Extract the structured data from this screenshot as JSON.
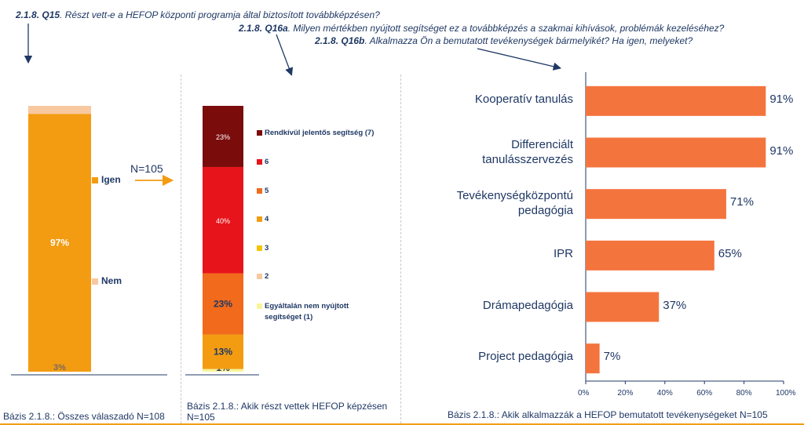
{
  "questions": {
    "q15": {
      "code": "2.1.8. Q15",
      "text": ". Részt vett-e a HEFOP központi programja által biztosított továbbképzésen?"
    },
    "q16a": {
      "code": "2.1.8. Q16a",
      "text": ". Milyen mértékben nyújtott segítséget ez a továbbképzés a szakmai kihívások, problémák kezeléséhez?"
    },
    "q16b": {
      "code": "2.1.8. Q16b",
      "text": ". Alkalmazza Ön a bemutatott tevékenységek bármelyikét? Ha igen, melyeket?"
    }
  },
  "n_label": "N=105",
  "bases": {
    "left": "Bázis 2.1.8.: Összes válaszadó N=108",
    "middle": "Bázis 2.1.8.: Akik részt vettek HEFOP képzésen N=105",
    "right": "Bázis 2.1.8.: Akik alkalmazzák a HEFOP bemutatott tevékenységeket N=105"
  },
  "colors": {
    "igen": "#f39c12",
    "nem": "#f8c8a0",
    "c7": "#7b0c0c",
    "c6": "#e8141b",
    "c5": "#f26a1b",
    "c4": "#f39c12",
    "c3": "#f5c400",
    "c2": "#f8c8a0",
    "c1": "#f7f59a",
    "hbar": "#f4743e",
    "text": "#1f3864"
  },
  "chart_data": [
    {
      "type": "bar",
      "stacked": true,
      "title": "Részt vett-e a HEFOP központi programja által biztosított továbbképzésen?",
      "series": [
        {
          "name": "Igen",
          "values": [
            97
          ],
          "label": "97%",
          "color_key": "igen"
        },
        {
          "name": "Nem",
          "values": [
            3
          ],
          "label": "3%",
          "color_key": "nem"
        }
      ],
      "legend": [
        "Igen",
        "Nem"
      ],
      "ylim": [
        0,
        100
      ]
    },
    {
      "type": "bar",
      "stacked": true,
      "title": "Milyen mértékben nyújtott segítséget ez a továbbképzés?",
      "series": [
        {
          "name": "Egyáltalán nem nyújtott segítséget (1)",
          "values": [
            1
          ],
          "label": "1%",
          "color_key": "c1"
        },
        {
          "name": "2",
          "values": [
            0
          ],
          "label": "",
          "color_key": "c2"
        },
        {
          "name": "3",
          "values": [
            0
          ],
          "label": "",
          "color_key": "c3"
        },
        {
          "name": "4",
          "values": [
            13
          ],
          "label": "13%",
          "color_key": "c4"
        },
        {
          "name": "5",
          "values": [
            23
          ],
          "label": "23%",
          "color_key": "c5"
        },
        {
          "name": "6",
          "values": [
            40
          ],
          "label": "40%",
          "color_key": "c6"
        },
        {
          "name": "Rendkívül jelentős segítség (7)",
          "values": [
            23
          ],
          "label": "23%",
          "color_key": "c7"
        }
      ],
      "legend": [
        {
          "label": "Rendkívül jelentős segítség (7)",
          "color_key": "c7"
        },
        {
          "label": "6",
          "color_key": "c6"
        },
        {
          "label": "5",
          "color_key": "c5"
        },
        {
          "label": "4",
          "color_key": "c4"
        },
        {
          "label": "3",
          "color_key": "c3"
        },
        {
          "label": "2",
          "color_key": "c2"
        },
        {
          "label": "Egyáltalán nem nyújtott segítséget (1)",
          "color_key": "c1"
        }
      ],
      "ylim": [
        0,
        100
      ]
    },
    {
      "type": "bar",
      "orientation": "horizontal",
      "title": "Alkalmazza Ön a bemutatott tevékenységek bármelyikét?",
      "categories": [
        "Kooperatív tanulás",
        "Differenciált tanulásszervezés",
        "Tevékenységközpontú pedagógia",
        "IPR",
        "Drámapedagógia",
        "Project pedagógia"
      ],
      "values": [
        91,
        91,
        71,
        65,
        37,
        7
      ],
      "labels": [
        "91%",
        "91%",
        "71%",
        "65%",
        "37%",
        "7%"
      ],
      "xlim": [
        0,
        100
      ],
      "xticks": [
        "0%",
        "20%",
        "40%",
        "60%",
        "80%",
        "100%"
      ]
    }
  ]
}
